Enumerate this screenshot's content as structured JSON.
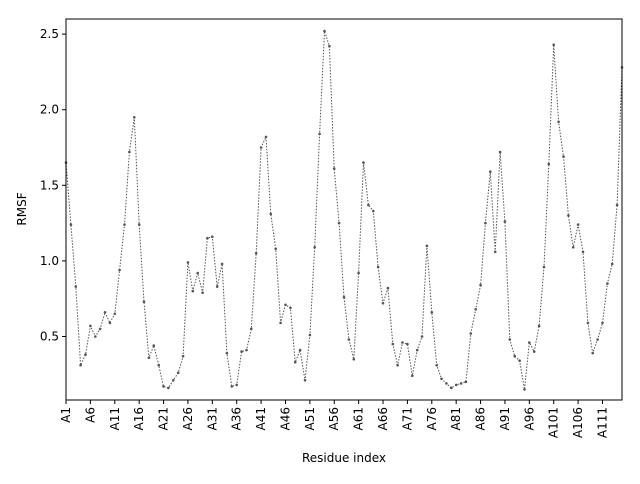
{
  "chart_data": {
    "type": "line",
    "title": "",
    "xlabel": "Residue index",
    "ylabel": "RMSF",
    "ylim": [
      0.08,
      2.6
    ],
    "xlim": [
      1,
      115
    ],
    "grid": false,
    "legend": "none",
    "line_style": "dotted",
    "marker": "point",
    "line_color": "#555555",
    "x": [
      1,
      2,
      3,
      4,
      5,
      6,
      7,
      8,
      9,
      10,
      11,
      12,
      13,
      14,
      15,
      16,
      17,
      18,
      19,
      20,
      21,
      22,
      23,
      24,
      25,
      26,
      27,
      28,
      29,
      30,
      31,
      32,
      33,
      34,
      35,
      36,
      37,
      38,
      39,
      40,
      41,
      42,
      43,
      44,
      45,
      46,
      47,
      48,
      49,
      50,
      51,
      52,
      53,
      54,
      55,
      56,
      57,
      58,
      59,
      60,
      61,
      62,
      63,
      64,
      65,
      66,
      67,
      68,
      69,
      70,
      71,
      72,
      73,
      74,
      75,
      76,
      77,
      78,
      79,
      80,
      81,
      82,
      83,
      84,
      85,
      86,
      87,
      88,
      89,
      90,
      91,
      92,
      93,
      94,
      95,
      96,
      97,
      98,
      99,
      100,
      101,
      102,
      103,
      104,
      105,
      106,
      107,
      108,
      109,
      110,
      111,
      112,
      113,
      114,
      115
    ],
    "values": [
      1.65,
      1.24,
      0.83,
      0.31,
      0.38,
      0.57,
      0.5,
      0.55,
      0.66,
      0.59,
      0.65,
      0.94,
      1.24,
      1.72,
      1.95,
      1.24,
      0.73,
      0.36,
      0.44,
      0.31,
      0.17,
      0.16,
      0.21,
      0.26,
      0.37,
      0.99,
      0.8,
      0.92,
      0.79,
      1.15,
      1.16,
      0.83,
      0.98,
      0.39,
      0.17,
      0.18,
      0.4,
      0.41,
      0.55,
      1.05,
      1.75,
      1.82,
      1.31,
      1.08,
      0.59,
      0.71,
      0.69,
      0.33,
      0.41,
      0.21,
      0.51,
      1.09,
      1.84,
      2.52,
      2.42,
      1.61,
      1.25,
      0.76,
      0.48,
      0.35,
      0.92,
      1.65,
      1.37,
      1.33,
      0.96,
      0.72,
      0.82,
      0.45,
      0.31,
      0.46,
      0.45,
      0.24,
      0.41,
      0.5,
      1.1,
      0.66,
      0.31,
      0.22,
      0.19,
      0.16,
      0.18,
      0.19,
      0.2,
      0.52,
      0.68,
      0.84,
      1.25,
      1.59,
      1.06,
      1.72,
      1.26,
      0.48,
      0.37,
      0.34,
      0.15,
      0.46,
      0.4,
      0.57,
      0.96,
      1.64,
      2.43,
      1.92,
      1.69,
      1.3,
      1.09,
      1.24,
      1.06,
      0.59,
      0.39,
      0.48,
      0.59,
      0.85,
      0.98,
      1.37,
      2.28
    ],
    "x_tick_labels": [
      "A1",
      "A6",
      "A11",
      "A16",
      "A21",
      "A26",
      "A31",
      "A36",
      "A41",
      "A46",
      "A51",
      "A56",
      "A61",
      "A66",
      "A71",
      "A76",
      "A81",
      "A86",
      "A91",
      "A96",
      "A101",
      "A106",
      "A111"
    ],
    "x_tick_positions": [
      1,
      6,
      11,
      16,
      21,
      26,
      31,
      36,
      41,
      46,
      51,
      56,
      61,
      66,
      71,
      76,
      81,
      86,
      91,
      96,
      101,
      106,
      111
    ],
    "y_tick_labels": [
      "0.5",
      "1.0",
      "1.5",
      "2.0",
      "2.5"
    ],
    "y_ticks": [
      0.5,
      1.0,
      1.5,
      2.0,
      2.5
    ]
  }
}
